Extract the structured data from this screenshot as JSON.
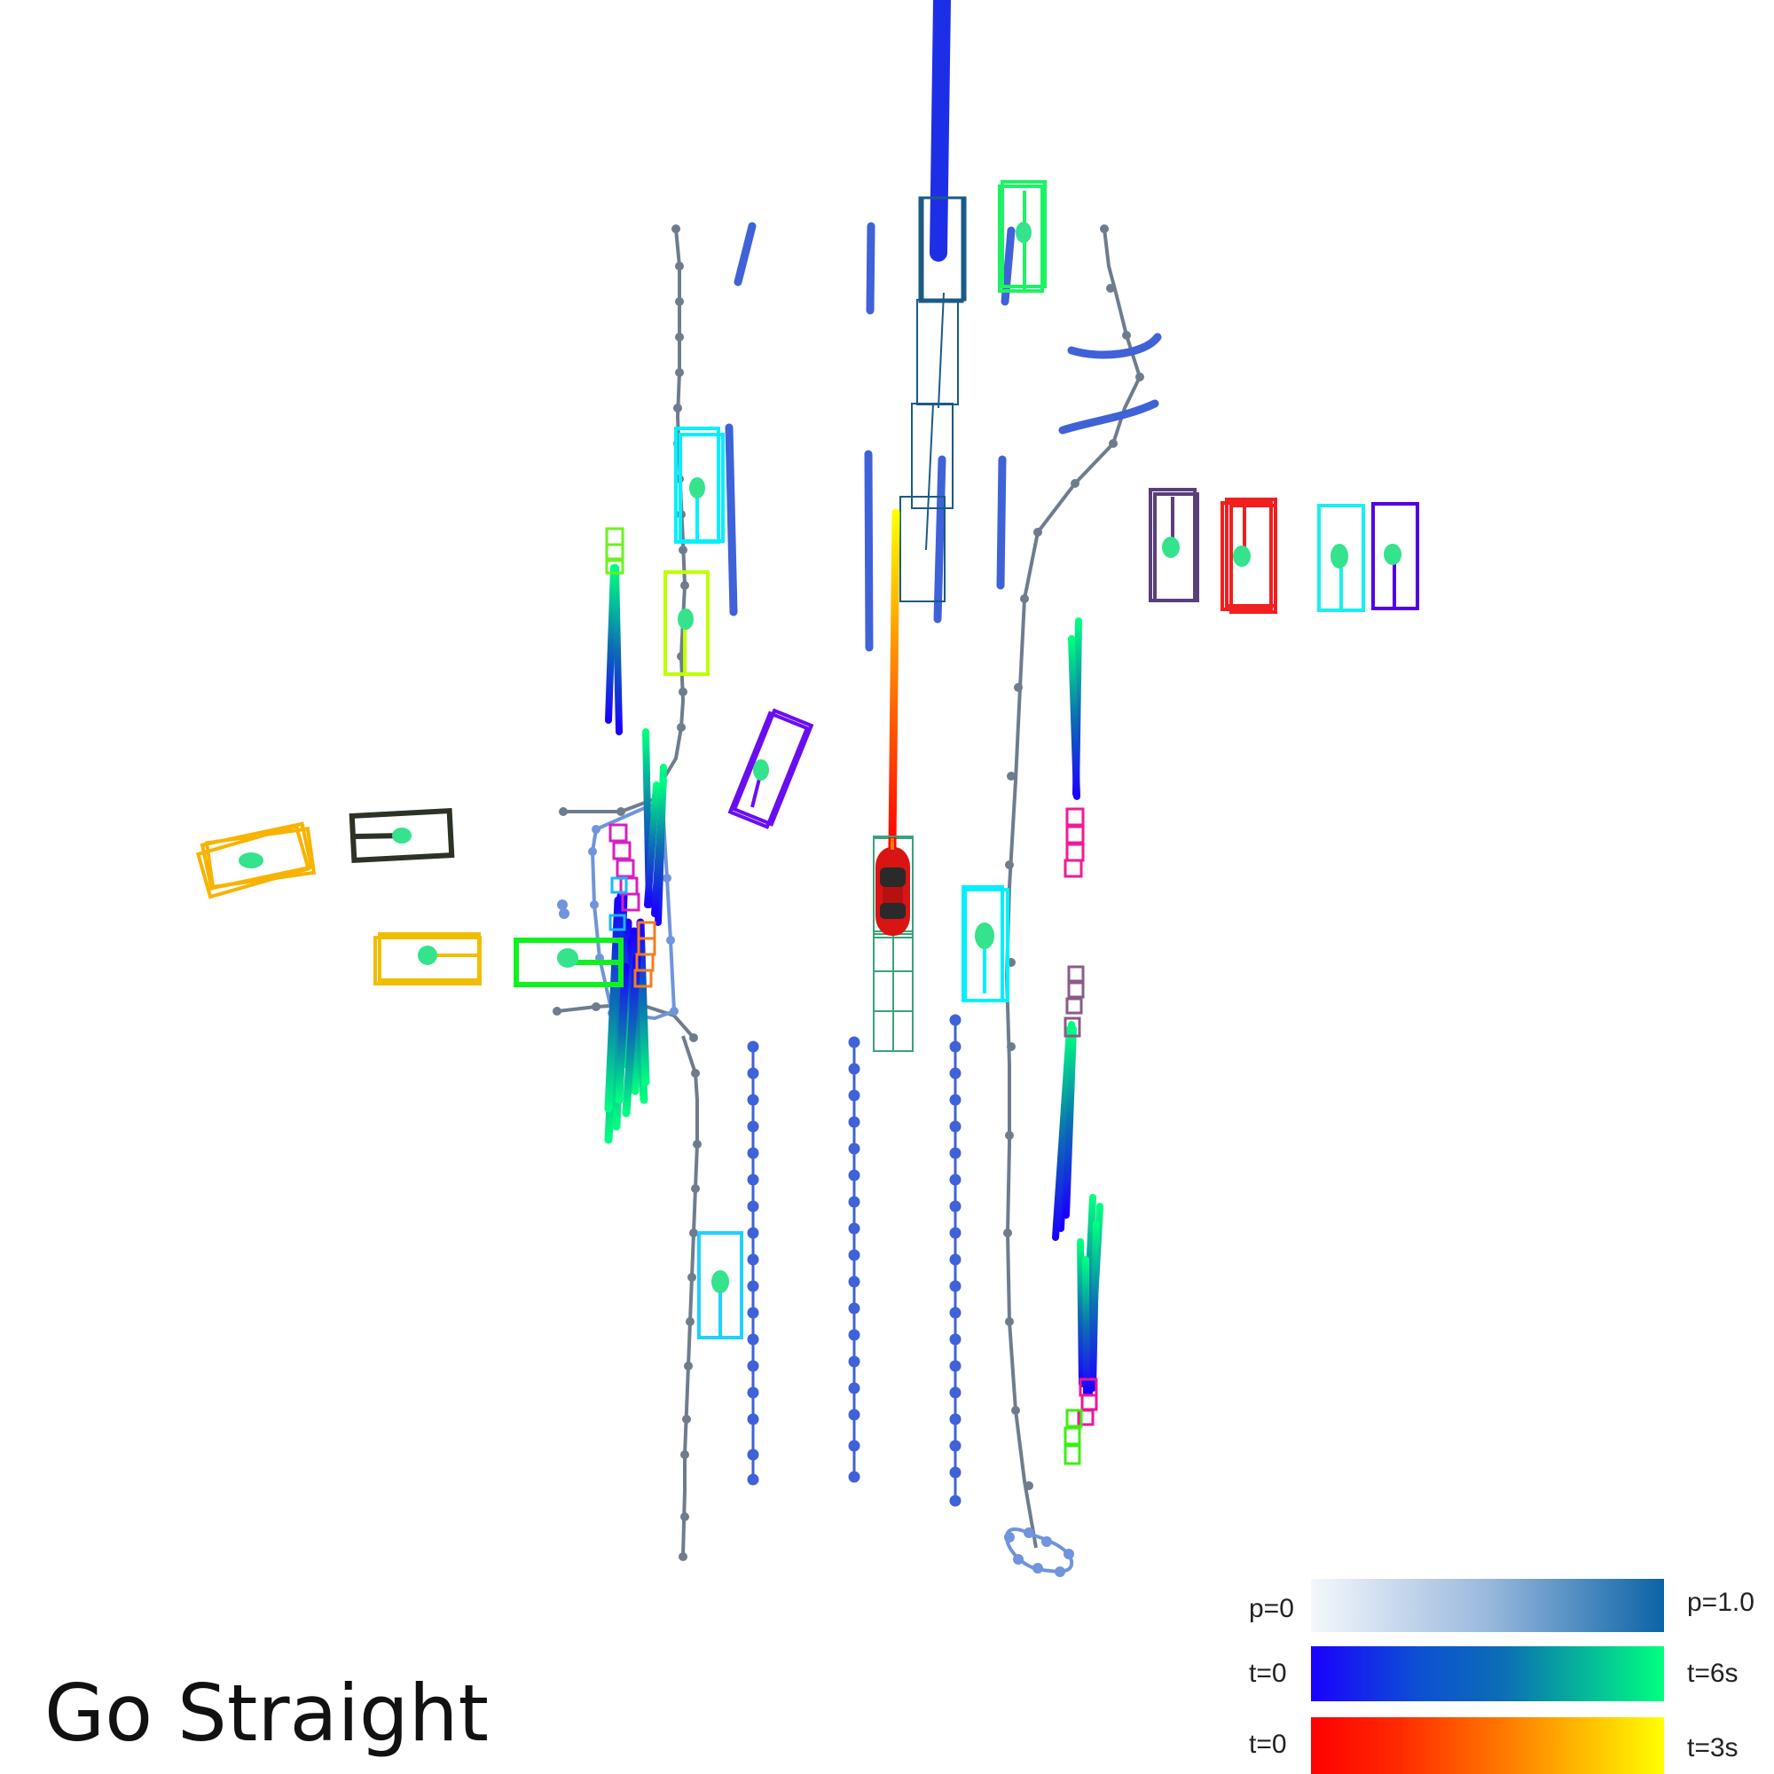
{
  "command": "Go Straight",
  "legend": {
    "probability": {
      "start_label": "p=0",
      "end_label": "p=1.0",
      "colors": [
        "#f4f7fc",
        "#0b63a6"
      ]
    },
    "agent_time": {
      "start_label": "t=0",
      "end_label": "t=6s",
      "colors": [
        "#1a00ff",
        "#0c6fb3",
        "#00ff80"
      ]
    },
    "ego_time": {
      "start_label": "t=0",
      "end_label": "t=3s",
      "colors": [
        "#ff0000",
        "#ff7a00",
        "#ffff00"
      ]
    }
  },
  "colors": {
    "road_boundary": "#6e7c8e",
    "lane_divider": "#3f62d8",
    "crosswalk": "#7094dd",
    "ego_vehicle": "#d81414",
    "agent_center": "#34e38c"
  }
}
